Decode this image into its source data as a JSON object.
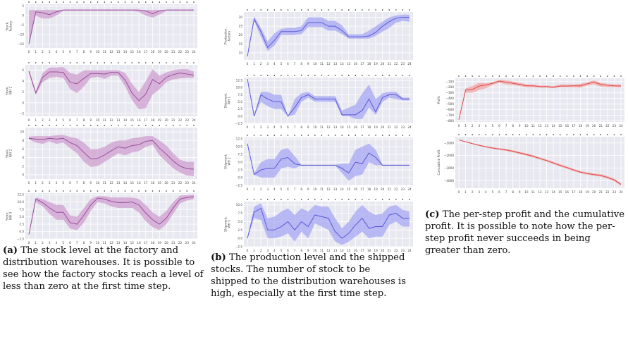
{
  "x_ticks": [
    "0",
    "1",
    "2",
    "3",
    "4",
    "5",
    "6",
    "7",
    "8",
    "9",
    "10",
    "11",
    "12",
    "13",
    "14",
    "15",
    "16",
    "17",
    "18",
    "19",
    "20",
    "21",
    "22",
    "23",
    "24"
  ],
  "colors": {
    "purple": "#9b4f9b",
    "purple_band": "#cf9fd0",
    "blue": "#5a5ad8",
    "blue_band": "#a7a7f4",
    "red": "#e04848",
    "red_band": "#f2a5a5"
  },
  "captions": {
    "a": {
      "label": "(a)",
      "text": "The stock level at the factory and distribution warehouses. It is possible to see how the factory stocks reach a level of less than zero at the first time step."
    },
    "b": {
      "label": "(b)",
      "text": "The production level and the shipped stocks. The number of stock to be shipped to the distribution warehouses is high, especially at the first time step."
    },
    "c": {
      "label": "(c)",
      "text": "The per-step profit and the cumulative profit. It is possible to note how the per-step profit never succeeds in being greater than zero."
    }
  },
  "chart_data": [
    {
      "type": "line",
      "ylabel": "Stock, factory",
      "yticks": [
        "5",
        "0",
        "−5",
        "−10",
        "−15"
      ],
      "ylim": [
        -17,
        6
      ],
      "color": "purple",
      "values": [
        -15,
        2,
        1.5,
        0.5,
        2,
        3,
        3,
        3,
        3,
        3,
        3,
        3,
        3,
        3,
        3,
        3,
        3,
        2.5,
        1,
        2.5,
        3,
        3,
        3,
        3,
        3
      ],
      "band": [
        [
          -15,
          3
        ],
        [
          0,
          3
        ],
        [
          -1.5,
          3
        ],
        [
          -1.5,
          3
        ],
        [
          0,
          3
        ],
        [
          2.5,
          3
        ],
        [
          2.5,
          3
        ],
        [
          2.5,
          3
        ],
        [
          2.5,
          3
        ],
        [
          2.5,
          3
        ],
        [
          2.5,
          3
        ],
        [
          2.5,
          3
        ],
        [
          2.5,
          3
        ],
        [
          2.5,
          3
        ],
        [
          2.5,
          3
        ],
        [
          2.5,
          3
        ],
        [
          2,
          3
        ],
        [
          0,
          3
        ],
        [
          -1,
          3
        ],
        [
          0.5,
          3
        ],
        [
          2.5,
          3
        ],
        [
          2.5,
          3
        ],
        [
          2.5,
          3
        ],
        [
          2.5,
          3
        ],
        [
          2.5,
          3
        ]
      ]
    },
    {
      "type": "line",
      "ylabel": "Stock, WH 1",
      "yticks": [
        "6",
        "4",
        "2",
        "0",
        "−2"
      ],
      "ylim": [
        -2.5,
        7
      ],
      "color": "purple",
      "values": [
        5.8,
        1.8,
        4.7,
        5.7,
        5.7,
        5.6,
        3.8,
        3.5,
        4.5,
        5.4,
        5.4,
        5.3,
        5.6,
        5.6,
        4.2,
        1.8,
        0.4,
        1.6,
        4.3,
        3.5,
        4.7,
        5.2,
        5.5,
        5.3,
        5.1
      ],
      "band": [
        [
          5.5,
          6.2
        ],
        [
          1.5,
          2.2
        ],
        [
          3.8,
          5.5
        ],
        [
          4.6,
          6.5
        ],
        [
          4.8,
          6.5
        ],
        [
          4.6,
          6.6
        ],
        [
          2.5,
          5.5
        ],
        [
          1.8,
          5.2
        ],
        [
          3,
          6
        ],
        [
          4.6,
          6
        ],
        [
          4.8,
          6
        ],
        [
          4.4,
          6
        ],
        [
          5,
          6
        ],
        [
          5,
          6
        ],
        [
          3,
          5.5
        ],
        [
          0.5,
          3.5
        ],
        [
          -1.2,
          2
        ],
        [
          -1,
          4
        ],
        [
          1.5,
          6.2
        ],
        [
          2.5,
          5
        ],
        [
          3.8,
          5.6
        ],
        [
          4.3,
          6
        ],
        [
          4.5,
          6.2
        ],
        [
          4.6,
          6.2
        ],
        [
          4.6,
          5.8
        ]
      ]
    },
    {
      "type": "line",
      "ylabel": "Stock, WH 2",
      "yticks": [
        "10",
        "8",
        "6",
        "4",
        "2",
        "0"
      ],
      "ylim": [
        -1,
        11
      ],
      "color": "purple",
      "values": [
        8.5,
        8.3,
        8.2,
        8.5,
        8.3,
        8.5,
        7.5,
        6.8,
        5.2,
        3.7,
        3.8,
        4.6,
        5.6,
        6.5,
        6.2,
        6.8,
        7,
        7.8,
        8,
        6.2,
        4.8,
        3.2,
        2,
        1.4,
        1.3
      ],
      "band": [
        [
          8.2,
          8.9
        ],
        [
          7.5,
          9
        ],
        [
          7.2,
          9
        ],
        [
          7.8,
          9
        ],
        [
          7.2,
          9.2
        ],
        [
          7.5,
          9.3
        ],
        [
          6.2,
          8.8
        ],
        [
          5,
          8.5
        ],
        [
          3,
          7.5
        ],
        [
          1.8,
          6
        ],
        [
          2,
          6
        ],
        [
          3,
          6.5
        ],
        [
          4,
          7.5
        ],
        [
          5,
          8
        ],
        [
          4.5,
          8
        ],
        [
          5.2,
          8.5
        ],
        [
          5.5,
          8.7
        ],
        [
          6.5,
          9
        ],
        [
          7,
          9
        ],
        [
          4.5,
          8
        ],
        [
          3,
          6.8
        ],
        [
          1.5,
          5
        ],
        [
          0.5,
          3.5
        ],
        [
          -0.2,
          3
        ],
        [
          -0.3,
          3
        ]
      ]
    },
    {
      "type": "line",
      "ylabel": "Stock, WH 3",
      "yticks": [
        "12.5",
        "10.0",
        "7.5",
        "5.0",
        "2.5",
        "0.0",
        "−2.5"
      ],
      "ylim": [
        -2.5,
        13
      ],
      "color": "purple",
      "values": [
        -1,
        11,
        9.8,
        8,
        6.5,
        6.5,
        3,
        2.5,
        5.5,
        9,
        11.3,
        11,
        10.2,
        9.8,
        9.8,
        10,
        9,
        6.3,
        4,
        2.5,
        4.5,
        8,
        11,
        11.5,
        11.8
      ],
      "band": [
        [
          -1.5,
          -0.5
        ],
        [
          10,
          11.5
        ],
        [
          8.5,
          11
        ],
        [
          6,
          10
        ],
        [
          4,
          9
        ],
        [
          4,
          9
        ],
        [
          1,
          5.5
        ],
        [
          0.5,
          5
        ],
        [
          3,
          8
        ],
        [
          7,
          11
        ],
        [
          10,
          12
        ],
        [
          9.5,
          12
        ],
        [
          8.5,
          11.5
        ],
        [
          8,
          11.5
        ],
        [
          8,
          11.5
        ],
        [
          8,
          11.5
        ],
        [
          6.5,
          11
        ],
        [
          3.5,
          9
        ],
        [
          1.5,
          6.5
        ],
        [
          0.5,
          5
        ],
        [
          2.5,
          7
        ],
        [
          6,
          10
        ],
        [
          9.5,
          12.2
        ],
        [
          10.5,
          12.3
        ],
        [
          11,
          12.5
        ]
      ]
    },
    {
      "type": "line",
      "ylabel": "Production, factory",
      "yticks": [
        "30",
        "25",
        "20",
        "15",
        "10"
      ],
      "ylim": [
        6,
        33
      ],
      "color": "blue",
      "values": [
        8,
        29,
        22,
        13,
        17,
        22,
        22,
        22,
        22.5,
        27,
        27,
        27,
        25,
        25,
        22.5,
        19,
        19,
        19,
        19.5,
        21.5,
        25,
        27.5,
        29.5,
        30,
        30
      ],
      "band": [
        [
          8,
          8.5
        ],
        [
          28,
          30.5
        ],
        [
          19,
          24
        ],
        [
          11,
          16.5
        ],
        [
          14,
          21
        ],
        [
          20,
          23.5
        ],
        [
          20,
          24
        ],
        [
          20,
          24
        ],
        [
          20.5,
          25
        ],
        [
          24.5,
          30
        ],
        [
          24.5,
          30
        ],
        [
          24.5,
          30
        ],
        [
          22.5,
          28
        ],
        [
          22.5,
          28
        ],
        [
          20.5,
          25.5
        ],
        [
          18,
          20.5
        ],
        [
          18,
          20.5
        ],
        [
          18,
          20.5
        ],
        [
          18,
          22.5
        ],
        [
          19.5,
          25
        ],
        [
          22,
          27.5
        ],
        [
          24,
          30
        ],
        [
          27,
          31
        ],
        [
          28,
          31.5
        ],
        [
          27.5,
          31.5
        ]
      ]
    },
    {
      "type": "line",
      "ylabel": "Shipment, WH 1",
      "yticks": [
        "12.5",
        "10.0",
        "7.5",
        "5.0",
        "2.5",
        "0.0",
        "−2.5"
      ],
      "ylim": [
        -2.5,
        13.5
      ],
      "color": "blue",
      "values": [
        13,
        0,
        7.5,
        6,
        5,
        5,
        0,
        3,
        6.5,
        7.5,
        6,
        6,
        6,
        6,
        0.5,
        0.5,
        0.5,
        2,
        6,
        1.5,
        6.5,
        7.5,
        7.5,
        6,
        6
      ],
      "band": [
        [
          13,
          13
        ],
        [
          0,
          0
        ],
        [
          5,
          8.5
        ],
        [
          3.5,
          8.5
        ],
        [
          2.5,
          7.5
        ],
        [
          2.5,
          7.5
        ],
        [
          0,
          0
        ],
        [
          0.5,
          6
        ],
        [
          5,
          8
        ],
        [
          6.5,
          8.5
        ],
        [
          5,
          7
        ],
        [
          5,
          7
        ],
        [
          5,
          7
        ],
        [
          5,
          7
        ],
        [
          0,
          2
        ],
        [
          0,
          3
        ],
        [
          -1,
          4
        ],
        [
          -1,
          8
        ],
        [
          3,
          11
        ],
        [
          0.5,
          6
        ],
        [
          5,
          8
        ],
        [
          6.5,
          8.5
        ],
        [
          6,
          8.5
        ],
        [
          5.5,
          6.5
        ],
        [
          5.5,
          6.5
        ]
      ]
    },
    {
      "type": "line",
      "ylabel": "Shipment, WH 2",
      "yticks": [
        "12.5",
        "10.0",
        "7.5",
        "5.0",
        "2.5",
        "0.0",
        "−2.5"
      ],
      "ylim": [
        -2.5,
        13
      ],
      "color": "blue",
      "values": [
        11,
        1,
        2.5,
        3,
        3,
        6,
        6.5,
        4.5,
        4,
        4,
        4,
        4,
        4,
        4,
        3,
        1.5,
        5,
        4.5,
        8,
        6.5,
        4,
        4,
        4,
        4,
        4
      ],
      "band": [
        [
          11,
          11
        ],
        [
          1,
          1.5
        ],
        [
          0,
          5
        ],
        [
          0,
          6
        ],
        [
          0,
          6
        ],
        [
          3,
          9
        ],
        [
          3.5,
          9.5
        ],
        [
          3,
          7
        ],
        [
          4,
          4.2
        ],
        [
          4,
          4.2
        ],
        [
          4,
          4.2
        ],
        [
          4,
          4.2
        ],
        [
          4,
          4.2
        ],
        [
          4,
          4.2
        ],
        [
          1.5,
          4.5
        ],
        [
          -1,
          4.5
        ],
        [
          0.5,
          9
        ],
        [
          1,
          10
        ],
        [
          5,
          11
        ],
        [
          4,
          9
        ],
        [
          4,
          4.2
        ],
        [
          4,
          4.2
        ],
        [
          4,
          4.2
        ],
        [
          4,
          4.2
        ],
        [
          4,
          4.2
        ]
      ]
    },
    {
      "type": "line",
      "ylabel": "Shipment, WH 3",
      "yticks": [
        "10.0",
        "7.5",
        "5.0",
        "2.5",
        "0.0",
        "−2.5"
      ],
      "ylim": [
        -2.5,
        11
      ],
      "color": "blue",
      "values": [
        0,
        7.8,
        9,
        2.5,
        2.5,
        3.5,
        5,
        2.5,
        5,
        3.5,
        7,
        6.5,
        6,
        2,
        0,
        1.5,
        4,
        6,
        3,
        3.5,
        3.5,
        7,
        7.5,
        6,
        6
      ],
      "band": [
        [
          0,
          0
        ],
        [
          6,
          9.5
        ],
        [
          5.5,
          10.5
        ],
        [
          0,
          6
        ],
        [
          0,
          6.5
        ],
        [
          0.5,
          8
        ],
        [
          1.5,
          9
        ],
        [
          -1,
          7
        ],
        [
          2,
          9
        ],
        [
          0,
          8
        ],
        [
          4.5,
          10
        ],
        [
          3.5,
          9.5
        ],
        [
          2.5,
          9.5
        ],
        [
          -1,
          6
        ],
        [
          -2,
          3
        ],
        [
          -1,
          5
        ],
        [
          0.5,
          8
        ],
        [
          2,
          10
        ],
        [
          0,
          8
        ],
        [
          0.5,
          7
        ],
        [
          0.5,
          7.5
        ],
        [
          4,
          9.5
        ],
        [
          5,
          10
        ],
        [
          3.5,
          8.5
        ],
        [
          3.5,
          8
        ]
      ]
    },
    {
      "type": "line",
      "ylabel": "Profit",
      "yticks": [
        "−100",
        "−200",
        "−300",
        "−400",
        "−500",
        "−600",
        "−700",
        "−800"
      ],
      "ylim": [
        -820,
        -40
      ],
      "color": "red",
      "values": [
        -780,
        -250,
        -240,
        -180,
        -160,
        -130,
        -90,
        -110,
        -130,
        -150,
        -175,
        -175,
        -190,
        -190,
        -200,
        -180,
        -180,
        -175,
        -175,
        -140,
        -110,
        -150,
        -165,
        -175,
        -180
      ],
      "band": [
        [
          -780,
          -780
        ],
        [
          -300,
          -220
        ],
        [
          -300,
          -180
        ],
        [
          -250,
          -120
        ],
        [
          -220,
          -130
        ],
        [
          -160,
          -110
        ],
        [
          -120,
          -70
        ],
        [
          -150,
          -80
        ],
        [
          -160,
          -100
        ],
        [
          -180,
          -120
        ],
        [
          -200,
          -150
        ],
        [
          -200,
          -150
        ],
        [
          -210,
          -170
        ],
        [
          -210,
          -170
        ],
        [
          -220,
          -180
        ],
        [
          -200,
          -150
        ],
        [
          -200,
          -150
        ],
        [
          -200,
          -150
        ],
        [
          -210,
          -140
        ],
        [
          -170,
          -110
        ],
        [
          -150,
          -80
        ],
        [
          -190,
          -120
        ],
        [
          -200,
          -140
        ],
        [
          -200,
          -150
        ],
        [
          -200,
          -150
        ]
      ]
    },
    {
      "type": "line",
      "ylabel": "Cumulative Profit",
      "yticks": [
        "−1000",
        "−2000",
        "−3000",
        "−4000"
      ],
      "ylim": [
        -4600,
        -500
      ],
      "color": "red",
      "values": [
        -750,
        -900,
        -1050,
        -1180,
        -1300,
        -1400,
        -1480,
        -1550,
        -1660,
        -1790,
        -1920,
        -2060,
        -2230,
        -2400,
        -2590,
        -2780,
        -2960,
        -3150,
        -3320,
        -3430,
        -3520,
        -3580,
        -3740,
        -3940,
        -4300
      ],
      "band": [
        [
          -750,
          -750
        ],
        [
          -930,
          -870
        ],
        [
          -1090,
          -1010
        ],
        [
          -1230,
          -1130
        ],
        [
          -1360,
          -1250
        ],
        [
          -1460,
          -1340
        ],
        [
          -1550,
          -1410
        ],
        [
          -1630,
          -1470
        ],
        [
          -1740,
          -1580
        ],
        [
          -1880,
          -1700
        ],
        [
          -2010,
          -1830
        ],
        [
          -2150,
          -1970
        ],
        [
          -2320,
          -2140
        ],
        [
          -2490,
          -2310
        ],
        [
          -2680,
          -2500
        ],
        [
          -2870,
          -2690
        ],
        [
          -3050,
          -2870
        ],
        [
          -3240,
          -3060
        ],
        [
          -3410,
          -3230
        ],
        [
          -3520,
          -3340
        ],
        [
          -3610,
          -3430
        ],
        [
          -3680,
          -3480
        ],
        [
          -3840,
          -3640
        ],
        [
          -4040,
          -3840
        ],
        [
          -4400,
          -4200
        ]
      ]
    }
  ]
}
